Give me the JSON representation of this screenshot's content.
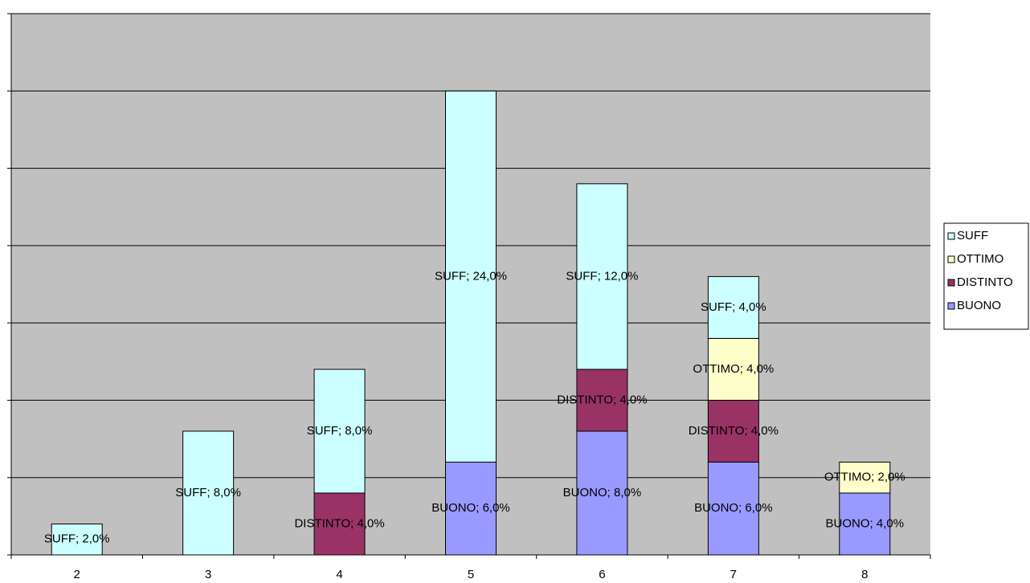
{
  "chart_data": {
    "type": "stacked_bar",
    "categories": [
      "2",
      "3",
      "4",
      "5",
      "6",
      "7",
      "8"
    ],
    "series": [
      {
        "name": "BUONO",
        "color": "#9999ff",
        "values": [
          null,
          null,
          null,
          6,
          8,
          6,
          4
        ],
        "value_labels": [
          null,
          null,
          null,
          "BUONO; 6,0%",
          "BUONO; 8,0%",
          "BUONO; 6,0%",
          "BUONO; 4,0%"
        ]
      },
      {
        "name": "DISTINTO",
        "color": "#993366",
        "values": [
          null,
          null,
          4,
          null,
          4,
          4,
          null
        ],
        "value_labels": [
          null,
          null,
          "DISTINTO; 4,0%",
          null,
          "DISTINTO; 4,0%",
          "DISTINTO; 4,0%",
          null
        ]
      },
      {
        "name": "OTTIMO",
        "color": "#ffffcc",
        "values": [
          null,
          null,
          null,
          null,
          null,
          4,
          2
        ],
        "value_labels": [
          null,
          null,
          null,
          null,
          null,
          "OTTIMO; 4,0%",
          "OTTIMO; 2,0%"
        ]
      },
      {
        "name": "SUFF",
        "color": "#ccffff",
        "values": [
          2,
          8,
          8,
          24,
          12,
          4,
          null
        ],
        "value_labels": [
          "SUFF; 2,0%",
          "SUFF; 8,0%",
          "SUFF; 8,0%",
          "SUFF; 24,0%",
          "SUFF; 12,0%",
          "SUFF; 4,0%",
          null
        ]
      }
    ],
    "ylim": [
      0,
      35
    ],
    "yticks": [
      0,
      5,
      10,
      15,
      20,
      25,
      30,
      35
    ],
    "grid": true,
    "legend": "right"
  }
}
